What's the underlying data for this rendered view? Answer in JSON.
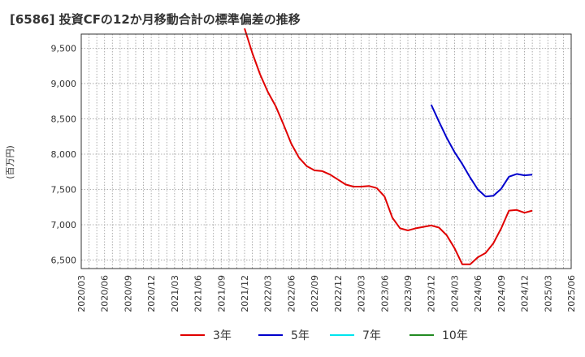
{
  "chart_data": {
    "type": "line",
    "title": "[6586]  投資CFの12か月移動合計の標準偏差の推移",
    "ylabel": "(百万円)",
    "xlabel": "",
    "ylim": [
      6380,
      9700
    ],
    "yticks": [
      6500,
      7000,
      7500,
      8000,
      8500,
      9000,
      9500
    ],
    "ytick_labels": [
      "6,500",
      "7,000",
      "7,500",
      "8,000",
      "8,500",
      "9,000",
      "9,500"
    ],
    "x_start": "2020/03",
    "x_end": "2025/06",
    "xtick_labels": [
      "2020/03",
      "2020/06",
      "2020/09",
      "2020/12",
      "2021/03",
      "2021/06",
      "2021/09",
      "2021/12",
      "2022/03",
      "2022/06",
      "2022/09",
      "2022/12",
      "2023/03",
      "2023/06",
      "2023/09",
      "2023/12",
      "2024/03",
      "2024/06",
      "2024/09",
      "2024/12",
      "2025/03",
      "2025/06"
    ],
    "grid": true,
    "legend_position": "bottom",
    "series": [
      {
        "name": "3年",
        "color": "#e00000",
        "start": "2021/12",
        "values": [
          9780,
          9430,
          9130,
          8880,
          8680,
          8420,
          8150,
          7950,
          7830,
          7770,
          7760,
          7710,
          7640,
          7570,
          7540,
          7540,
          7550,
          7520,
          7400,
          7100,
          6950,
          6920,
          6950,
          6970,
          6990,
          6960,
          6850,
          6670,
          6440,
          6440,
          6540,
          6600,
          6740,
          6950,
          7200,
          7210,
          7170,
          7200
        ]
      },
      {
        "name": "5年",
        "color": "#0000cc",
        "start": "2023/12",
        "values": [
          8700,
          8460,
          8230,
          8030,
          7860,
          7670,
          7500,
          7400,
          7410,
          7510,
          7680,
          7720,
          7700,
          7710
        ]
      },
      {
        "name": "7年",
        "color": "#00e5ee",
        "start": null,
        "values": []
      },
      {
        "name": "10年",
        "color": "#228b22",
        "start": null,
        "values": []
      }
    ]
  }
}
